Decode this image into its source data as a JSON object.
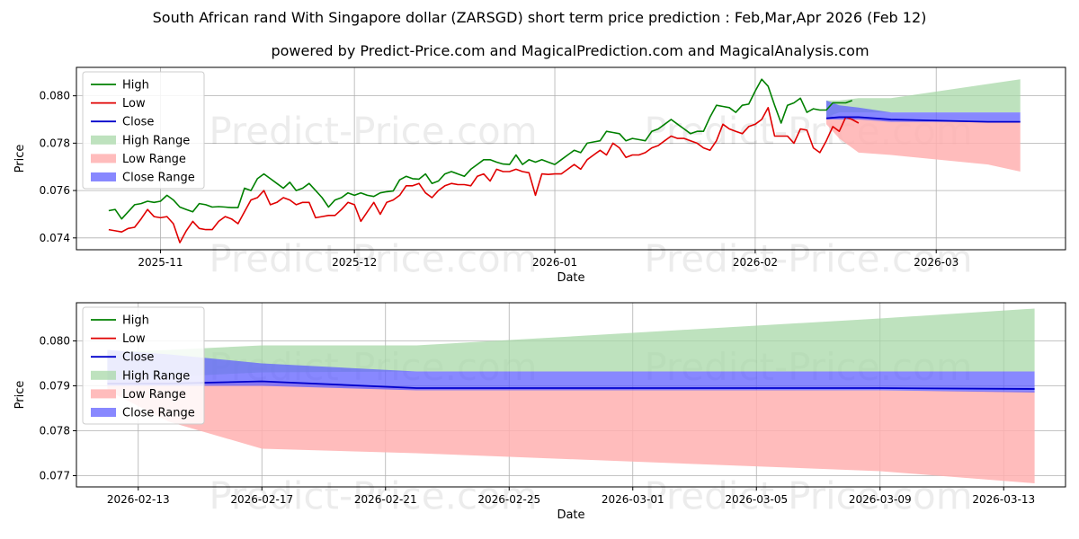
{
  "title": "South African rand With Singapore dollar (ZARSGD) short term price prediction : Feb,Mar,Apr 2026 (Feb 12)",
  "subtitle": "powered by Predict-Price.com and MagicalPrediction.com and MagicalAnalysis.com",
  "watermark": "Predict-Price.com",
  "colors": {
    "high": "#008000",
    "low": "#e00000",
    "close": "#0000cc",
    "high_range": "#a8d8a8",
    "low_range": "#ffb0b0",
    "close_range": "#6060ff"
  },
  "chart_data": [
    {
      "type": "line",
      "xlabel": "Date",
      "ylabel": "Price",
      "x_domain": [
        "2025-10-19",
        "2026-03-21"
      ],
      "ylim": [
        0.0735,
        0.0812
      ],
      "y_ticks": [
        0.074,
        0.076,
        0.078,
        0.08
      ],
      "y_tick_labels": [
        "0.074",
        "0.076",
        "0.078",
        "0.080"
      ],
      "x_ticks": [
        "2025-11-01",
        "2025-12-01",
        "2026-01-01",
        "2026-02-01",
        "2026-03-01"
      ],
      "x_tick_labels": [
        "2025-11",
        "2025-12",
        "2026-01",
        "2026-02",
        "2026-03"
      ],
      "legend": [
        "High",
        "Low",
        "Close",
        "High Range",
        "Low Range",
        "Close Range"
      ],
      "legend_position": "upper-left",
      "series": [
        {
          "name": "High",
          "start": "2025-10-24",
          "values": [
            0.07515,
            0.0752,
            0.0748,
            0.0751,
            0.0754,
            0.07545,
            0.07555,
            0.0755,
            0.07555,
            0.0758,
            0.0756,
            0.0753,
            0.0752,
            0.0751,
            0.07545,
            0.0754,
            0.0753,
            0.07532,
            0.0753,
            0.07528,
            0.07528,
            0.0761,
            0.076,
            0.0765,
            0.0767,
            0.0765,
            0.0763,
            0.0761,
            0.07635,
            0.076,
            0.0761,
            0.0763,
            0.076,
            0.0757,
            0.0753,
            0.0756,
            0.0757,
            0.0759,
            0.0758,
            0.0759,
            0.0758,
            0.07575,
            0.0759,
            0.07595,
            0.07598,
            0.07645,
            0.0766,
            0.0765,
            0.07648,
            0.0767,
            0.0763,
            0.0764,
            0.0767,
            0.0768,
            0.0767,
            0.0766,
            0.0769,
            0.0771,
            0.0773,
            0.0773,
            0.0772,
            0.07712,
            0.0771,
            0.0775,
            0.0771,
            0.0773,
            0.0772,
            0.0773,
            0.0772,
            0.0771,
            0.0773,
            0.0775,
            0.0777,
            0.0776,
            0.078,
            0.07805,
            0.0781,
            0.0785,
            0.07845,
            0.0784,
            0.0781,
            0.0782,
            0.07815,
            0.0781,
            0.0785,
            0.0786,
            0.0788,
            0.079,
            0.0788,
            0.0786,
            0.0784,
            0.0785,
            0.0785,
            0.0791,
            0.0796,
            0.07955,
            0.0795,
            0.0793,
            0.0796,
            0.07965,
            0.0802,
            0.0807,
            0.0804,
            0.0796,
            0.07885,
            0.0796,
            0.0797,
            0.0799,
            0.0793,
            0.07945,
            0.0794,
            0.0794,
            0.0797,
            0.0797,
            0.0797,
            0.0798
          ]
        },
        {
          "name": "Low",
          "start": "2025-10-24",
          "values": [
            0.07435,
            0.0743,
            0.07425,
            0.0744,
            0.07445,
            0.0748,
            0.0752,
            0.0749,
            0.07485,
            0.0749,
            0.0746,
            0.0738,
            0.0743,
            0.0747,
            0.0744,
            0.07435,
            0.07435,
            0.0747,
            0.0749,
            0.0748,
            0.0746,
            0.0751,
            0.0756,
            0.0757,
            0.076,
            0.0754,
            0.0755,
            0.0757,
            0.0756,
            0.0754,
            0.0755,
            0.0755,
            0.07485,
            0.0749,
            0.07495,
            0.07495,
            0.0752,
            0.0755,
            0.0754,
            0.0747,
            0.0751,
            0.0755,
            0.075,
            0.0755,
            0.0756,
            0.0758,
            0.0762,
            0.0762,
            0.0763,
            0.0759,
            0.0757,
            0.076,
            0.0762,
            0.0763,
            0.07625,
            0.07625,
            0.0762,
            0.0766,
            0.0767,
            0.0764,
            0.0769,
            0.0768,
            0.0768,
            0.0769,
            0.0768,
            0.07675,
            0.0758,
            0.0767,
            0.07668,
            0.0767,
            0.0767,
            0.0769,
            0.0771,
            0.0769,
            0.0773,
            0.0775,
            0.0777,
            0.0775,
            0.078,
            0.0778,
            0.0774,
            0.0775,
            0.0775,
            0.0776,
            0.0778,
            0.0779,
            0.0781,
            0.0783,
            0.0782,
            0.0782,
            0.0781,
            0.078,
            0.0778,
            0.0777,
            0.0781,
            0.0788,
            0.0786,
            0.0785,
            0.0784,
            0.0787,
            0.0788,
            0.079,
            0.0795,
            0.0783,
            0.0783,
            0.0783,
            0.078,
            0.0786,
            0.07855,
            0.0778,
            0.0776,
            0.0781,
            0.0787,
            0.0785,
            0.0791,
            0.079,
            0.07885
          ]
        }
      ],
      "forecast": {
        "dates": [
          "2026-02-12",
          "2026-02-14",
          "2026-02-17",
          "2026-02-22",
          "2026-03-09",
          "2026-03-14"
        ],
        "high_range_upper": [
          0.0798,
          0.0798,
          0.0799,
          0.0799,
          0.0805,
          0.0807
        ],
        "high_range_lower": [
          0.0791,
          0.0793,
          0.0793,
          0.0793,
          0.0793,
          0.0793
        ],
        "low_range_upper": [
          0.0791,
          0.0791,
          0.0791,
          0.079,
          0.0789,
          0.0789
        ],
        "low_range_lower": [
          0.0788,
          0.0782,
          0.0776,
          0.0775,
          0.0771,
          0.0768
        ],
        "close_range_upper": [
          0.0798,
          0.0796,
          0.0795,
          0.0793,
          0.0793,
          0.0793
        ],
        "close_range_lower": [
          0.079,
          0.079,
          0.079,
          0.0789,
          0.0789,
          0.0789
        ],
        "close": [
          0.07905,
          0.0791,
          0.0791,
          0.079,
          0.0789,
          0.0789
        ]
      }
    },
    {
      "type": "area",
      "xlabel": "Date",
      "ylabel": "Price",
      "x_domain": [
        "2026-02-11",
        "2026-03-15"
      ],
      "ylim": [
        0.07675,
        0.08085
      ],
      "y_ticks": [
        0.077,
        0.078,
        0.079,
        0.08
      ],
      "y_tick_labels": [
        "0.077",
        "0.078",
        "0.079",
        "0.080"
      ],
      "x_ticks": [
        "2026-02-13",
        "2026-02-17",
        "2026-02-21",
        "2026-02-25",
        "2026-03-01",
        "2026-03-05",
        "2026-03-09",
        "2026-03-13"
      ],
      "x_tick_labels": [
        "2026-02-13",
        "2026-02-17",
        "2026-02-21",
        "2026-02-25",
        "2026-03-01",
        "2026-03-05",
        "2026-03-09",
        "2026-03-13"
      ],
      "legend": [
        "High",
        "Low",
        "Close",
        "High Range",
        "Low Range",
        "Close Range"
      ],
      "legend_position": "upper-left",
      "forecast": {
        "dates": [
          "2026-02-12",
          "2026-02-14",
          "2026-02-17",
          "2026-02-22",
          "2026-03-09",
          "2026-03-14"
        ],
        "high_range_upper": [
          0.07975,
          0.0798,
          0.0799,
          0.0799,
          0.0805,
          0.08072
        ],
        "high_range_lower": [
          0.0791,
          0.0792,
          0.0793,
          0.07932,
          0.07932,
          0.07932
        ],
        "low_range_upper": [
          0.0791,
          0.0791,
          0.0791,
          0.07895,
          0.0789,
          0.07888
        ],
        "low_range_lower": [
          0.0789,
          0.0782,
          0.0776,
          0.0775,
          0.0771,
          0.07683
        ],
        "close_range_upper": [
          0.0798,
          0.0797,
          0.0795,
          0.07932,
          0.07932,
          0.07932
        ],
        "close_range_lower": [
          0.079,
          0.079,
          0.079,
          0.0789,
          0.0789,
          0.07885
        ],
        "close": [
          0.07905,
          0.07905,
          0.0791,
          0.07895,
          0.07895,
          0.07893
        ]
      }
    }
  ]
}
